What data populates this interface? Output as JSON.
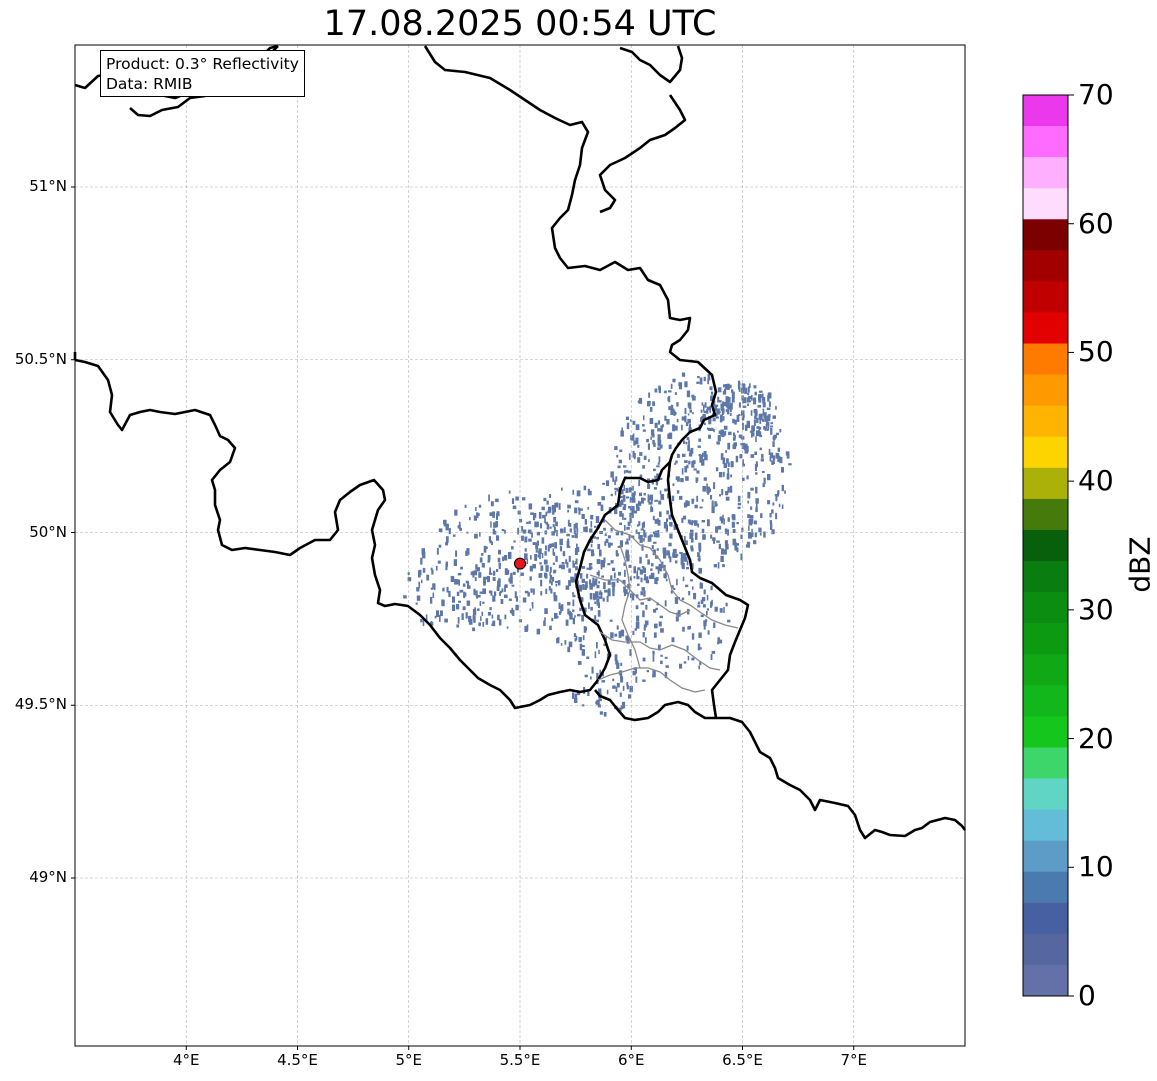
{
  "title": "17.08.2025 00:54 UTC",
  "info_box": {
    "product_line": "Product: 0.3° Reflectivity",
    "data_line": "Data: RMIB"
  },
  "map": {
    "lon_range": [
      3.5,
      7.5
    ],
    "lat_range": [
      48.5,
      51.4
    ],
    "lon_ticks": [
      {
        "value": 4.0,
        "label": "4°E"
      },
      {
        "value": 4.5,
        "label": "4.5°E"
      },
      {
        "value": 5.0,
        "label": "5°E"
      },
      {
        "value": 5.5,
        "label": "5.5°E"
      },
      {
        "value": 6.0,
        "label": "6°E"
      },
      {
        "value": 6.5,
        "label": "6.5°E"
      },
      {
        "value": 7.0,
        "label": "7°E"
      }
    ],
    "lat_ticks": [
      {
        "value": 51.0,
        "label": "51°N"
      },
      {
        "value": 50.5,
        "label": "50.5°N"
      },
      {
        "value": 50.0,
        "label": "50°N"
      },
      {
        "value": 49.5,
        "label": "49.5°N"
      },
      {
        "value": 49.0,
        "label": "49°N"
      }
    ],
    "gridlines": true,
    "radar_site": {
      "lon": 5.5,
      "lat": 49.91,
      "color": "#e8141c"
    },
    "echo_color": "#5d77a8"
  },
  "colorbar": {
    "label": "dBZ",
    "ticks": [
      "0",
      "10",
      "20",
      "30",
      "40",
      "50",
      "60",
      "70"
    ],
    "range": [
      0,
      70
    ],
    "colors": [
      "#6470a8",
      "#55679e",
      "#4660a2",
      "#4b7ab1",
      "#5c9cc6",
      "#63bdd9",
      "#60d5c5",
      "#3dd66a",
      "#15c61c",
      "#12b81b",
      "#10a815",
      "#0d9a13",
      "#0b8d12",
      "#0a7d11",
      "#085f0c",
      "#467a0a",
      "#acb10a",
      "#fed400",
      "#feb400",
      "#ff9900",
      "#ff7b00",
      "#e20000",
      "#c00000",
      "#a20000",
      "#7d0000",
      "#fedcfe",
      "#feb0fe",
      "#ff6bff",
      "#ec38ec"
    ]
  }
}
